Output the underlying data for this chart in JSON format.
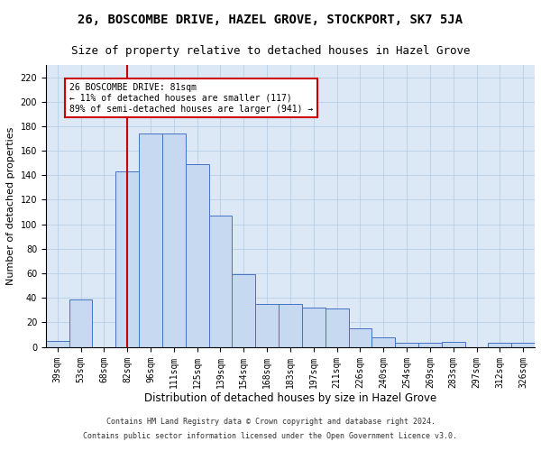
{
  "title": "26, BOSCOMBE DRIVE, HAZEL GROVE, STOCKPORT, SK7 5JA",
  "subtitle": "Size of property relative to detached houses in Hazel Grove",
  "xlabel": "Distribution of detached houses by size in Hazel Grove",
  "ylabel": "Number of detached properties",
  "footnote1": "Contains HM Land Registry data © Crown copyright and database right 2024.",
  "footnote2": "Contains public sector information licensed under the Open Government Licence v3.0.",
  "categories": [
    "39sqm",
    "53sqm",
    "68sqm",
    "82sqm",
    "96sqm",
    "111sqm",
    "125sqm",
    "139sqm",
    "154sqm",
    "168sqm",
    "183sqm",
    "197sqm",
    "211sqm",
    "226sqm",
    "240sqm",
    "254sqm",
    "269sqm",
    "283sqm",
    "297sqm",
    "312sqm",
    "326sqm"
  ],
  "values": [
    5,
    39,
    0,
    143,
    174,
    174,
    149,
    107,
    59,
    35,
    35,
    32,
    31,
    15,
    8,
    3,
    3,
    4,
    0,
    3,
    3
  ],
  "bar_color": "#c6d9f0",
  "bar_edge_color": "#4472c4",
  "vline_x_index": 3,
  "vline_color": "#cc0000",
  "annotation_text": "26 BOSCOMBE DRIVE: 81sqm\n← 11% of detached houses are smaller (117)\n89% of semi-detached houses are larger (941) →",
  "annotation_box_color": "#cc0000",
  "ylim": [
    0,
    230
  ],
  "yticks": [
    0,
    20,
    40,
    60,
    80,
    100,
    120,
    140,
    160,
    180,
    200,
    220
  ],
  "grid_color": "#b8cfe8",
  "background_color": "#dce8f5",
  "title_fontsize": 10,
  "subtitle_fontsize": 9,
  "tick_fontsize": 7,
  "ylabel_fontsize": 8,
  "xlabel_fontsize": 8.5,
  "footnote_fontsize": 6
}
